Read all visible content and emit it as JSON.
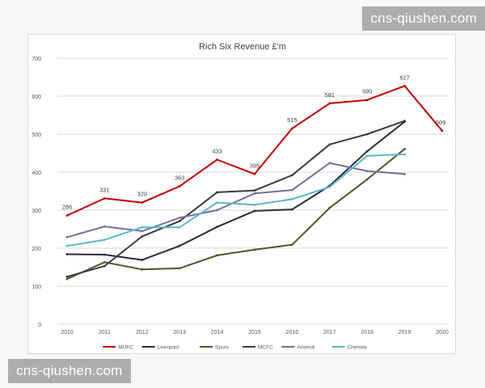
{
  "chart_data": {
    "type": "line",
    "title": "Rich Six Revenue £'m",
    "xlabel": "",
    "ylabel": "",
    "categories": [
      "2010",
      "2011",
      "2012",
      "2013",
      "2014",
      "2015",
      "2016",
      "2017",
      "2018",
      "2019",
      "2020"
    ],
    "ylim": [
      0,
      700
    ],
    "yticks": [
      0,
      100,
      200,
      300,
      400,
      500,
      600,
      700
    ],
    "grid": true,
    "legend": "bottom",
    "series": [
      {
        "name": "MUFC",
        "color": "#c00000",
        "labeled": true,
        "values": [
          286,
          331,
          320,
          363,
          433,
          395,
          515,
          581,
          590,
          627,
          509
        ]
      },
      {
        "name": "Liverpool",
        "color": "#2b2b3a",
        "labeled": false,
        "values": [
          184,
          183,
          169,
          206,
          256,
          298,
          302,
          364,
          455,
          533,
          null
        ]
      },
      {
        "name": "Spurs",
        "color": "#4a5a2a",
        "labeled": false,
        "values": [
          119,
          163,
          144,
          147,
          181,
          196,
          209,
          306,
          381,
          461,
          null
        ]
      },
      {
        "name": "MCFC",
        "color": "#3b3b45",
        "labeled": false,
        "values": [
          125,
          153,
          231,
          271,
          347,
          352,
          392,
          473,
          500,
          535,
          null
        ]
      },
      {
        "name": "Arsenal",
        "color": "#7a6e99",
        "labeled": false,
        "values": [
          229,
          257,
          245,
          280,
          300,
          344,
          353,
          424,
          403,
          395,
          null
        ]
      },
      {
        "name": "Chelsea",
        "color": "#5db8c6",
        "labeled": false,
        "values": [
          206,
          222,
          255,
          255,
          320,
          314,
          329,
          361,
          443,
          447,
          null
        ]
      }
    ]
  },
  "watermarks": {
    "top": "cns-qiushen.com",
    "bottom": "cns-qiushen.com"
  }
}
